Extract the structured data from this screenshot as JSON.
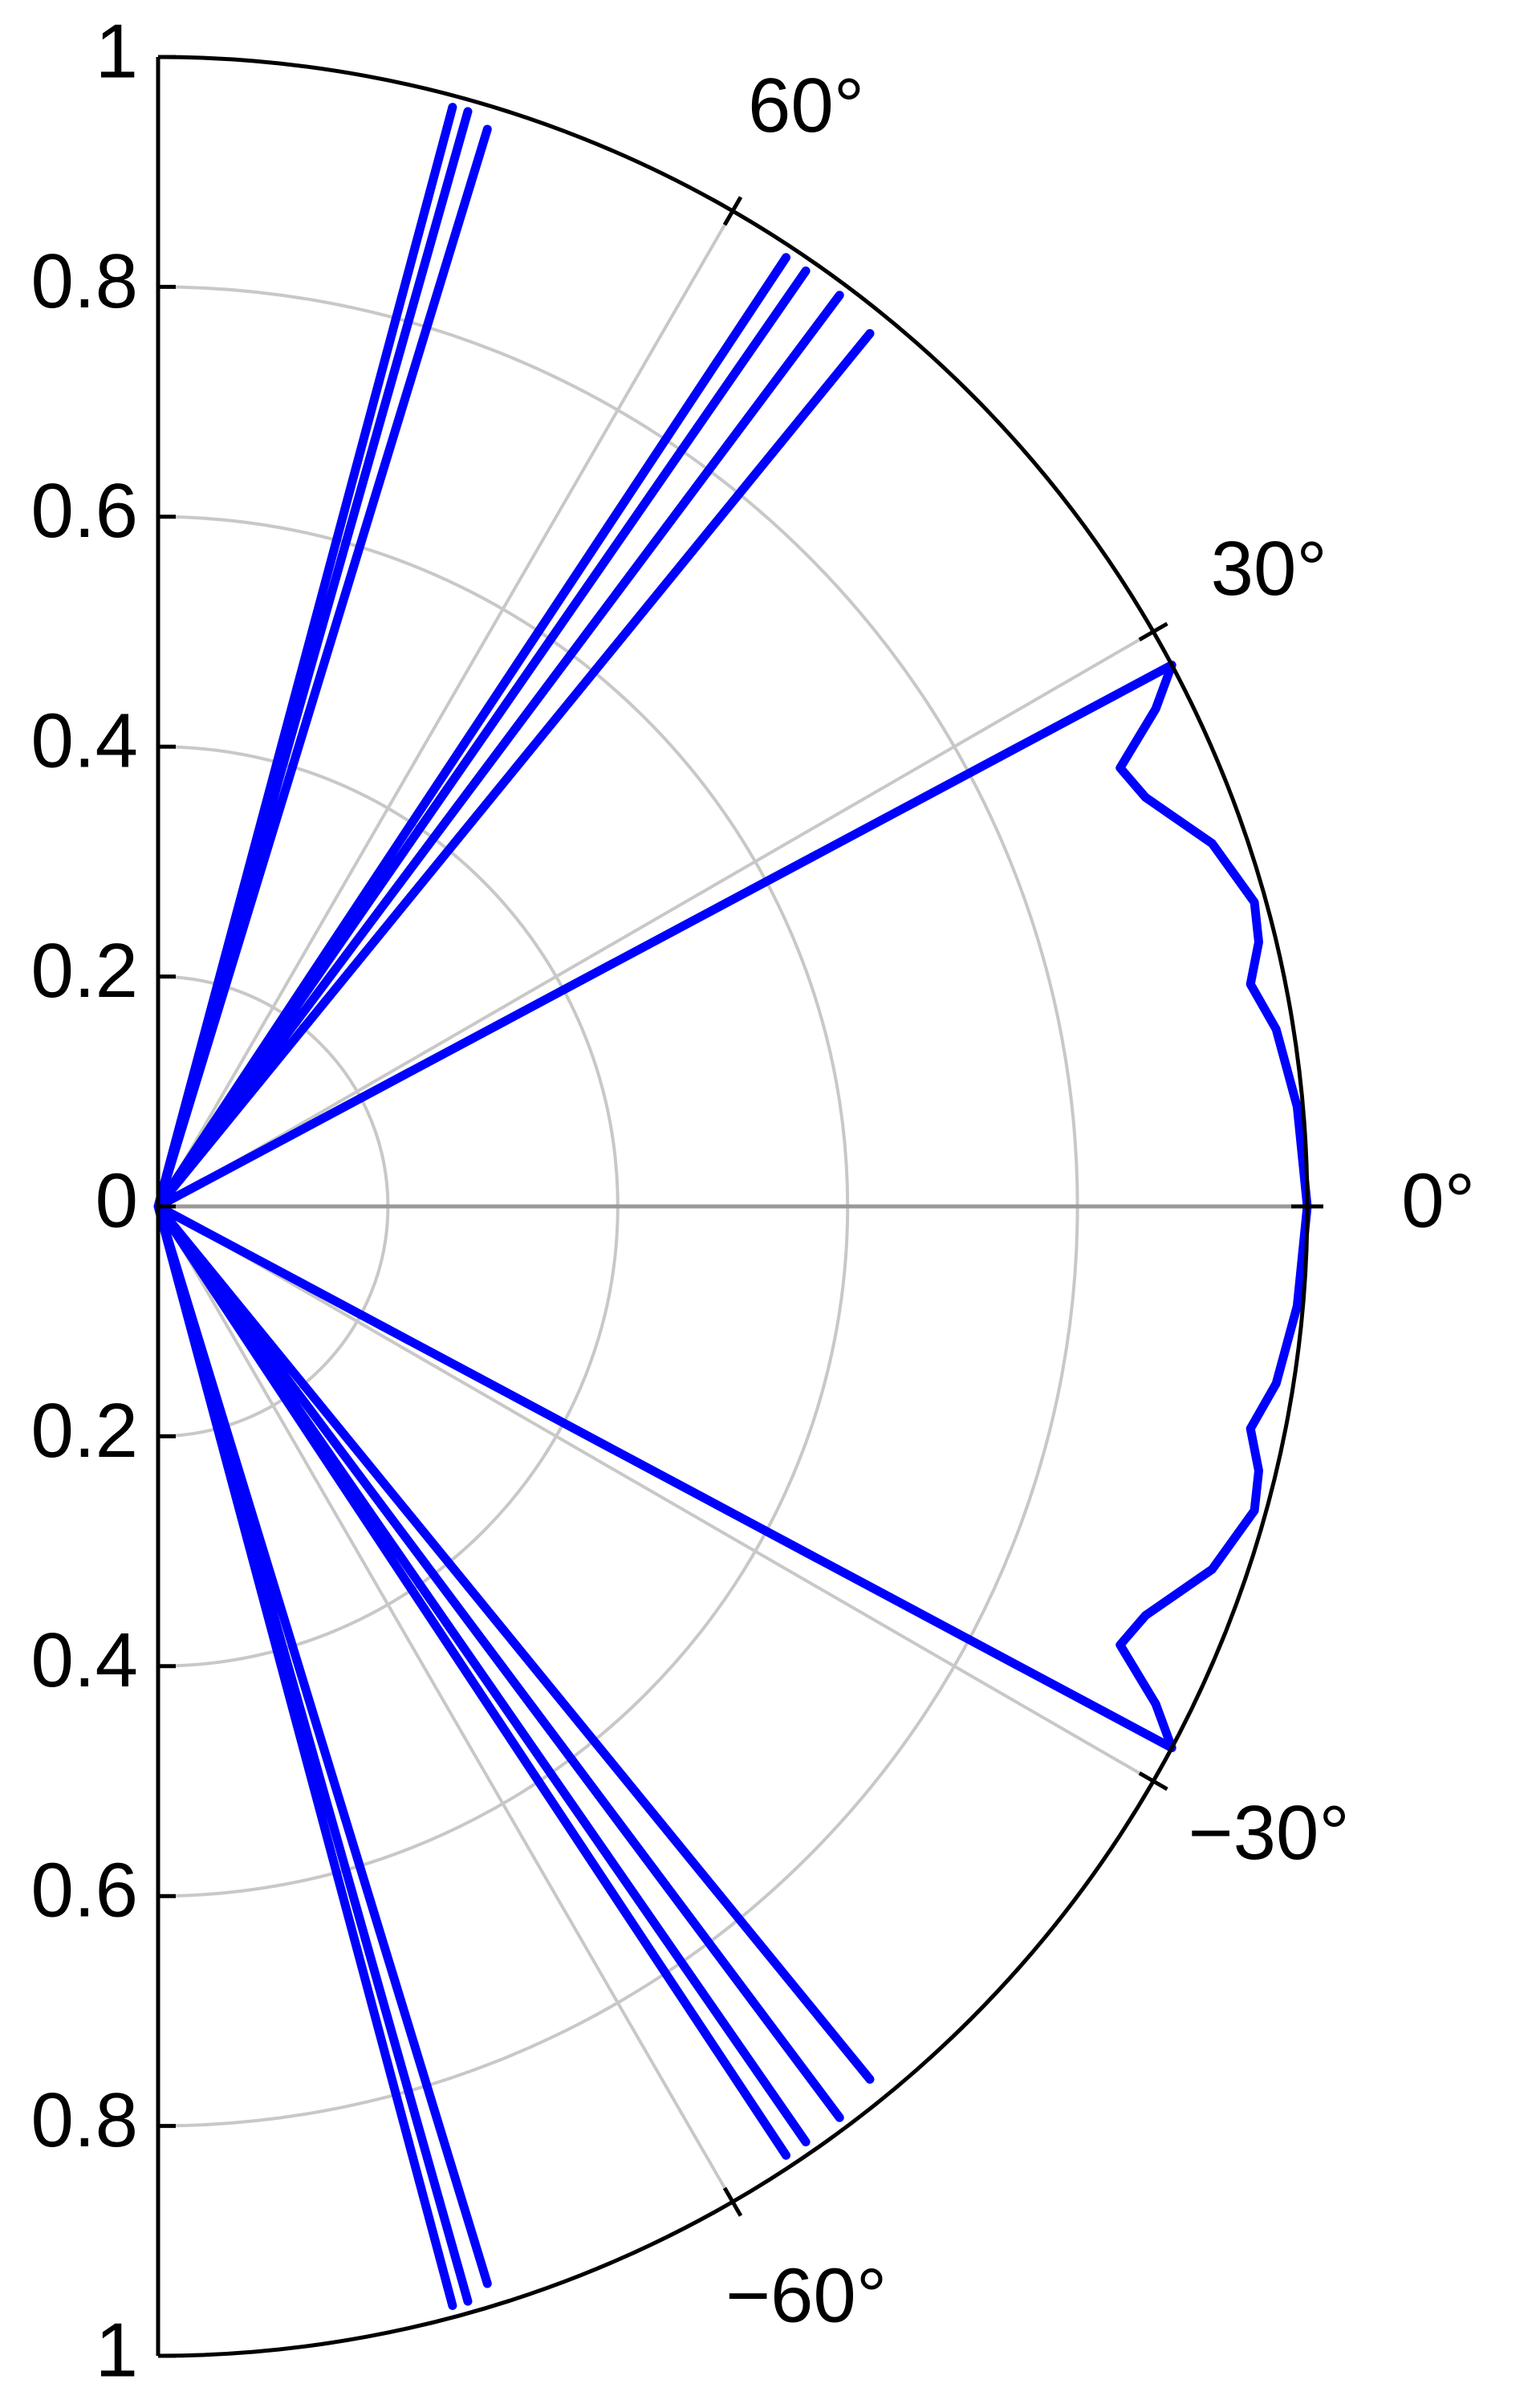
{
  "chart_data": {
    "type": "polar",
    "thetalim": [
      -90,
      90
    ],
    "rlim": [
      0,
      1
    ],
    "rticks": [
      0,
      0.2,
      0.4,
      0.6,
      0.8,
      1
    ],
    "thetaticks": [
      {
        "value": -60,
        "label": "−60°"
      },
      {
        "value": -30,
        "label": "−30°"
      },
      {
        "value": 0,
        "label": "0°"
      },
      {
        "value": 30,
        "label": "30°"
      },
      {
        "value": 60,
        "label": "60°"
      }
    ],
    "grid": true,
    "series": [
      {
        "color": "#0000ff",
        "x": [
          -90,
          -75.4,
          -75,
          -74.6,
          -74.2,
          -73.6,
          -73,
          -72.5,
          -57,
          -56.5,
          -56,
          -55.3,
          -54.5,
          -53.2,
          -52.5,
          -50.8,
          -50,
          -31,
          -28.1,
          -26.5,
          -24.5,
          -22.5,
          -19,
          -15.5,
          -13.5,
          -11.5,
          -9,
          -5,
          0,
          5,
          9,
          11.5,
          13.5,
          15.5,
          19,
          22.5,
          24.5,
          26.5,
          28.1,
          31,
          50,
          50.8,
          52.5,
          53.2,
          54.5,
          55.3,
          56,
          56.5,
          57,
          72.5,
          73,
          73.6,
          74.2,
          74.6,
          75,
          75.4,
          90
        ],
        "values": [
          0,
          0,
          0.99,
          0,
          0.99,
          0,
          0.98,
          0,
          0,
          0.99,
          0,
          0.99,
          0,
          0.99,
          0,
          0.98,
          0,
          0,
          1.0,
          0.97,
          0.92,
          0.93,
          0.97,
          0.99,
          0.985,
          0.97,
          0.985,
          0.995,
          1.0,
          0.995,
          0.985,
          0.97,
          0.985,
          0.99,
          0.97,
          0.93,
          0.92,
          0.97,
          1.0,
          0,
          0,
          0.98,
          0,
          0.99,
          0,
          0.99,
          0,
          0.99,
          0,
          0,
          0.98,
          0,
          0.99,
          0,
          0.99,
          0,
          0
        ]
      }
    ]
  }
}
